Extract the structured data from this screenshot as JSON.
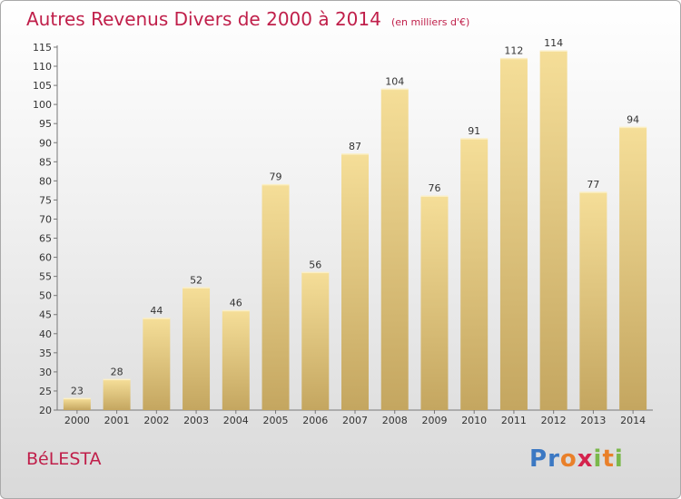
{
  "chart_data": {
    "type": "bar",
    "title": "Autres Revenus Divers de 2000 à 2014",
    "unit": "(en milliers d'€)",
    "categories": [
      "2000",
      "2001",
      "2002",
      "2003",
      "2004",
      "2005",
      "2006",
      "2007",
      "2008",
      "2009",
      "2010",
      "2011",
      "2012",
      "2013",
      "2014"
    ],
    "values": [
      23,
      28,
      44,
      52,
      46,
      79,
      56,
      87,
      104,
      76,
      91,
      112,
      114,
      77,
      94
    ],
    "ylim": [
      20,
      115
    ],
    "ytick_step": 5,
    "grid": false,
    "bar_color": "#e6c878",
    "title_color": "#c01f4a"
  },
  "place_name": "BéLESTA",
  "brand": {
    "letters": [
      "P",
      "r",
      "o",
      "x",
      "i",
      "t",
      "i"
    ],
    "colors": [
      "#3b78c3",
      "#3b78c3",
      "#e9802a",
      "#d4234d",
      "#7ab84b",
      "#e9802a",
      "#7ab84b"
    ]
  }
}
